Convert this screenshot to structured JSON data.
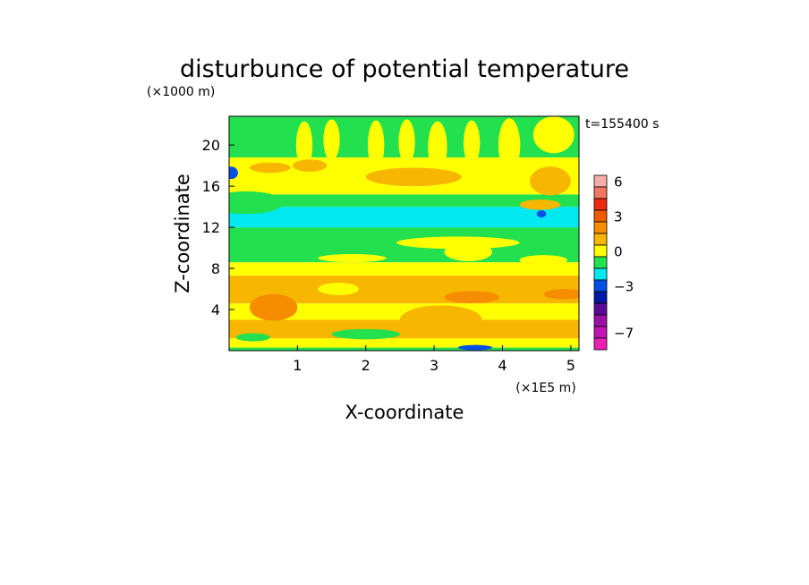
{
  "chart_data": {
    "type": "heatmap",
    "title": "disturbunce of potential temperature",
    "time_label": "t=155400 s",
    "xlabel": "X-coordinate",
    "ylabel": "Z-coordinate",
    "x_unit": "(×1E5 m)",
    "y_unit": "(×1000 m)",
    "x_ticks": [
      "1",
      "2",
      "3",
      "4",
      "5"
    ],
    "y_ticks": [
      "4",
      "8",
      "12",
      "16",
      "20"
    ],
    "x_tick_values": [
      1,
      2,
      3,
      4,
      5
    ],
    "y_tick_values": [
      4,
      8,
      12,
      16,
      20
    ],
    "xlim": [
      0,
      5.12
    ],
    "ylim": [
      0,
      22.8
    ],
    "colorbar": {
      "labels": [
        "6",
        "3",
        "0",
        "−3",
        "−7"
      ],
      "label_levels": [
        6,
        3,
        0,
        -3,
        -7
      ],
      "bands": [
        {
          "from": 6,
          "to": 7,
          "color": "#f4b0a8"
        },
        {
          "from": 5,
          "to": 6,
          "color": "#f07860"
        },
        {
          "from": 4,
          "to": 5,
          "color": "#ee2a10"
        },
        {
          "from": 3,
          "to": 4,
          "color": "#f05a00"
        },
        {
          "from": 2,
          "to": 3,
          "color": "#f68c00"
        },
        {
          "from": 1,
          "to": 2,
          "color": "#f7b600"
        },
        {
          "from": 0,
          "to": 1,
          "color": "#ffff00"
        },
        {
          "from": -1,
          "to": 0,
          "color": "#22e04e"
        },
        {
          "from": -2,
          "to": -1,
          "color": "#00e8f0"
        },
        {
          "from": -3,
          "to": -2,
          "color": "#0050e8"
        },
        {
          "from": -4,
          "to": -3,
          "color": "#0018a8"
        },
        {
          "from": -5,
          "to": -4,
          "color": "#5a0a96"
        },
        {
          "from": -6,
          "to": -5,
          "color": "#9c10a8"
        },
        {
          "from": -7,
          "to": -6,
          "color": "#c214b4"
        },
        {
          "from": -8,
          "to": -7,
          "color": "#ea20b0"
        }
      ]
    },
    "field_bands": [
      {
        "z0": 0.0,
        "z1": 0.3,
        "value": -0.5
      },
      {
        "z0": 0.3,
        "z1": 1.2,
        "value": 0.5
      },
      {
        "z0": 1.2,
        "z1": 3.0,
        "value": 1.5
      },
      {
        "z0": 3.0,
        "z1": 4.6,
        "value": 0.5
      },
      {
        "z0": 4.6,
        "z1": 7.3,
        "value": 1.5
      },
      {
        "z0": 7.3,
        "z1": 8.6,
        "value": 0.5
      },
      {
        "z0": 8.6,
        "z1": 12.0,
        "value": -0.5
      },
      {
        "z0": 12.0,
        "z1": 14.0,
        "value": -1.5
      },
      {
        "z0": 14.0,
        "z1": 15.2,
        "value": -0.5
      },
      {
        "z0": 15.2,
        "z1": 18.8,
        "value": 0.5
      },
      {
        "z0": 18.8,
        "z1": 22.8,
        "value": -0.5
      }
    ],
    "field_patches": [
      {
        "x": 0.65,
        "z": 4.2,
        "rx": 0.35,
        "rz": 1.3,
        "value": 2.5
      },
      {
        "x": 1.6,
        "z": 6.0,
        "rx": 0.3,
        "rz": 0.6,
        "value": 0.5
      },
      {
        "x": 3.1,
        "z": 3.0,
        "rx": 0.6,
        "rz": 1.4,
        "value": 1.5
      },
      {
        "x": 3.55,
        "z": 5.2,
        "rx": 0.4,
        "rz": 0.6,
        "value": 2.5
      },
      {
        "x": 4.9,
        "z": 5.5,
        "rx": 0.3,
        "rz": 0.5,
        "value": 2.5
      },
      {
        "x": 2.0,
        "z": 1.6,
        "rx": 0.5,
        "rz": 0.5,
        "value": -0.5
      },
      {
        "x": 0.35,
        "z": 1.3,
        "rx": 0.25,
        "rz": 0.4,
        "value": -0.5
      },
      {
        "x": 3.35,
        "z": 10.5,
        "rx": 0.9,
        "rz": 0.6,
        "value": 0.5
      },
      {
        "x": 1.8,
        "z": 9.0,
        "rx": 0.5,
        "rz": 0.4,
        "value": 0.5
      },
      {
        "x": 3.5,
        "z": 9.6,
        "rx": 0.35,
        "rz": 0.9,
        "value": 0.5
      },
      {
        "x": 4.6,
        "z": 8.8,
        "rx": 0.35,
        "rz": 0.5,
        "value": 0.5
      },
      {
        "x": 0.25,
        "z": 14.4,
        "rx": 0.55,
        "rz": 1.1,
        "value": -0.5
      },
      {
        "x": 3.45,
        "z": 13.2,
        "rx": 0.8,
        "rz": 0.7,
        "value": -1.5
      },
      {
        "x": 1.1,
        "z": 20.0,
        "rx": 0.12,
        "rz": 2.3,
        "value": 0.5
      },
      {
        "x": 1.5,
        "z": 20.5,
        "rx": 0.12,
        "rz": 2.0,
        "value": 0.5
      },
      {
        "x": 2.15,
        "z": 20.0,
        "rx": 0.12,
        "rz": 2.4,
        "value": 0.5
      },
      {
        "x": 2.6,
        "z": 20.3,
        "rx": 0.12,
        "rz": 2.2,
        "value": 0.5
      },
      {
        "x": 3.05,
        "z": 19.8,
        "rx": 0.14,
        "rz": 2.5,
        "value": 0.5
      },
      {
        "x": 3.55,
        "z": 20.2,
        "rx": 0.12,
        "rz": 2.2,
        "value": 0.5
      },
      {
        "x": 4.1,
        "z": 20.0,
        "rx": 0.16,
        "rz": 2.6,
        "value": 0.5
      },
      {
        "x": 4.75,
        "z": 21.0,
        "rx": 0.3,
        "rz": 1.8,
        "value": 0.5
      },
      {
        "x": 1.18,
        "z": 18.0,
        "rx": 0.25,
        "rz": 0.6,
        "value": 1.5
      },
      {
        "x": 0.6,
        "z": 17.8,
        "rx": 0.3,
        "rz": 0.5,
        "value": 1.5
      },
      {
        "x": 2.7,
        "z": 16.9,
        "rx": 0.7,
        "rz": 0.9,
        "value": 1.5
      },
      {
        "x": 4.7,
        "z": 16.5,
        "rx": 0.3,
        "rz": 1.4,
        "value": 1.5
      },
      {
        "x": 4.55,
        "z": 14.2,
        "rx": 0.3,
        "rz": 0.5,
        "value": 1.5
      },
      {
        "x": 0.03,
        "z": 17.3,
        "rx": 0.1,
        "rz": 0.6,
        "value": -2.5
      },
      {
        "x": 4.57,
        "z": 13.3,
        "rx": 0.07,
        "rz": 0.35,
        "value": -2.5
      },
      {
        "x": 3.6,
        "z": 0.3,
        "rx": 0.25,
        "rz": 0.25,
        "value": -2.5
      }
    ]
  }
}
